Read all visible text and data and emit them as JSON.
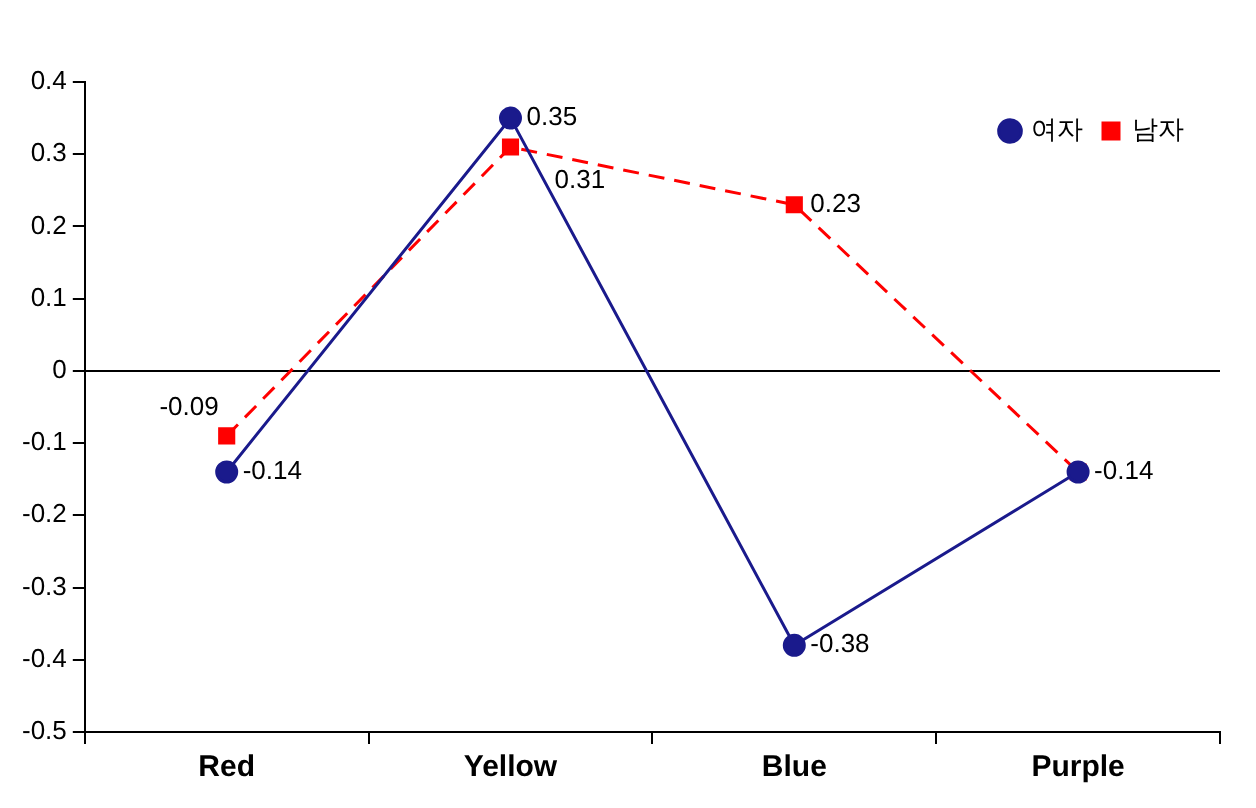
{
  "chart_data": {
    "type": "line",
    "categories": [
      "Red",
      "Yellow",
      "Blue",
      "Purple"
    ],
    "series": [
      {
        "name": "여자",
        "color": "#1a1a8c",
        "values": [
          -0.14,
          0.35,
          -0.38,
          -0.14
        ],
        "marker": "circle",
        "line_style": "solid",
        "value_labels": [
          "-0.14",
          "0.35",
          "-0.38",
          null
        ]
      },
      {
        "name": "남자",
        "color": "#ff0000",
        "values": [
          -0.09,
          0.31,
          0.23,
          -0.14
        ],
        "marker": "square",
        "line_style": "dashed",
        "value_labels": [
          "-0.09",
          "0.31",
          "0.23",
          "-0.14"
        ]
      }
    ],
    "ylim": [
      -0.5,
      0.4
    ],
    "yticks": [
      -0.5,
      -0.4,
      -0.3,
      -0.2,
      -0.1,
      0,
      0.1,
      0.2,
      0.3,
      0.4
    ],
    "ref_lines": [
      {
        "axis": "y",
        "value": 0,
        "color": "#000000",
        "line_style": "solid"
      }
    ],
    "grid": false,
    "legend": "top right"
  }
}
